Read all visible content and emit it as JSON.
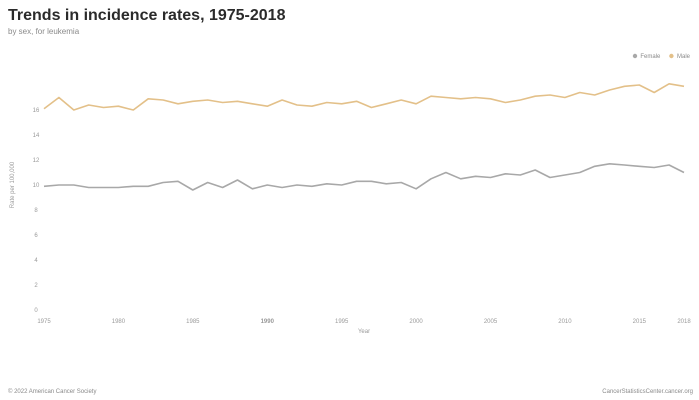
{
  "chart_data": {
    "type": "line",
    "title": "Trends in incidence rates, 1975-2018",
    "subtitle": "by sex, for leukemia",
    "xlabel": "Year",
    "ylabel": "Rate per 100,000",
    "xlim": [
      1975,
      2018
    ],
    "ylim": [
      0,
      20
    ],
    "y_ticks": [
      0,
      2,
      4,
      6,
      8,
      10,
      12,
      14,
      16
    ],
    "x_ticks": [
      1975,
      1980,
      1985,
      1990,
      1995,
      2000,
      2005,
      2010,
      2015,
      2018
    ],
    "highlight_tick": 1990,
    "grid": false,
    "legend_position": "top-right",
    "x": [
      1975,
      1976,
      1977,
      1978,
      1979,
      1980,
      1981,
      1982,
      1983,
      1984,
      1985,
      1986,
      1987,
      1988,
      1989,
      1990,
      1991,
      1992,
      1993,
      1994,
      1995,
      1996,
      1997,
      1998,
      1999,
      2000,
      2001,
      2002,
      2003,
      2004,
      2005,
      2006,
      2007,
      2008,
      2009,
      2010,
      2011,
      2012,
      2013,
      2014,
      2015,
      2016,
      2017,
      2018
    ],
    "series": [
      {
        "name": "Female",
        "color": "#a8a8a8",
        "values": [
          9.9,
          10.0,
          10.0,
          9.8,
          9.8,
          9.8,
          9.9,
          9.9,
          10.2,
          10.3,
          9.6,
          10.2,
          9.8,
          10.4,
          9.7,
          10.0,
          9.8,
          10.0,
          9.9,
          10.1,
          10.0,
          10.3,
          10.3,
          10.1,
          10.2,
          9.7,
          10.5,
          11.0,
          10.5,
          10.7,
          10.6,
          10.9,
          10.8,
          11.2,
          10.6,
          10.8,
          11.0,
          11.5,
          11.7,
          11.6,
          11.5,
          11.4,
          11.6,
          11.0
        ]
      },
      {
        "name": "Male",
        "color": "#e3c089",
        "values": [
          16.1,
          17.0,
          16.0,
          16.4,
          16.2,
          16.3,
          16.0,
          16.9,
          16.8,
          16.5,
          16.7,
          16.8,
          16.6,
          16.7,
          16.5,
          16.3,
          16.8,
          16.4,
          16.3,
          16.6,
          16.5,
          16.7,
          16.2,
          16.5,
          16.8,
          16.5,
          17.1,
          17.0,
          16.9,
          17.0,
          16.9,
          16.6,
          16.8,
          17.1,
          17.2,
          17.0,
          17.4,
          17.2,
          17.6,
          17.9,
          18.0,
          17.4,
          18.1,
          17.9
        ]
      }
    ]
  },
  "footer": {
    "copyright": "© 2022 American Cancer Society",
    "source": "CancerStatisticsCenter.cancer.org"
  }
}
